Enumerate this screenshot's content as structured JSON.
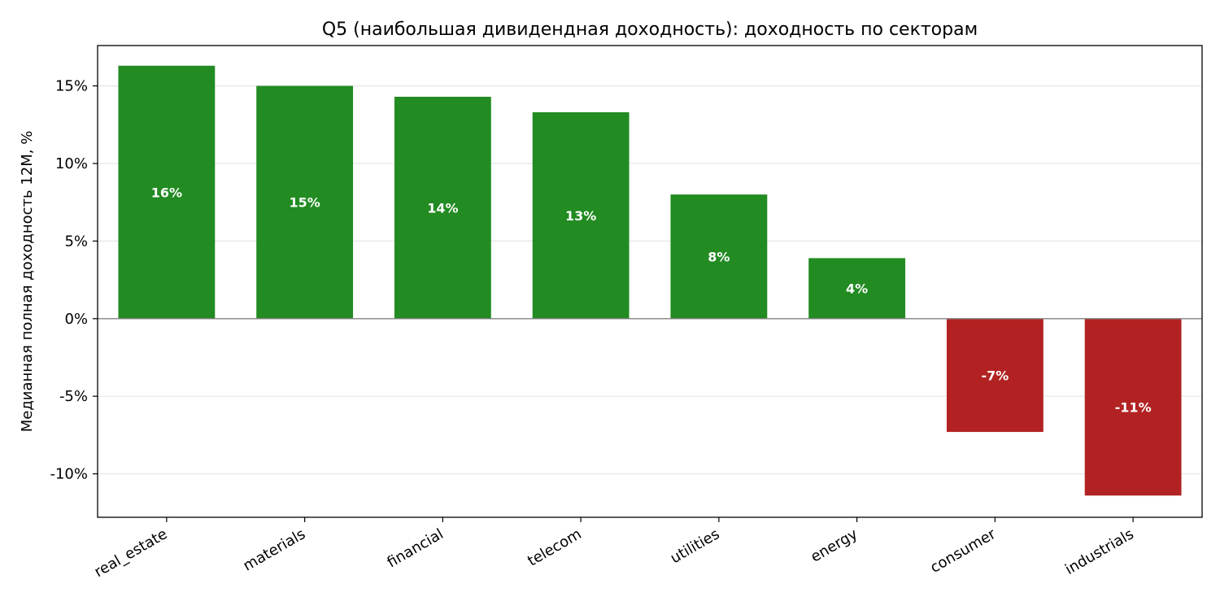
{
  "chart_data": {
    "type": "bar",
    "title": "Q5 (наибольшая дивидендная доходность): доходность по секторам",
    "xlabel": "",
    "ylabel": "Медианная полная доходность 12М, %",
    "categories": [
      "real_estate",
      "materials",
      "financial",
      "telecom",
      "utilities",
      "energy",
      "consumer",
      "industrials"
    ],
    "values": [
      16.3,
      15.0,
      14.3,
      13.3,
      8.0,
      3.9,
      -7.3,
      -11.4
    ],
    "value_labels": [
      "16%",
      "15%",
      "14%",
      "13%",
      "8%",
      "4%",
      "-7%",
      "-11%"
    ],
    "ylim": [
      -12.8,
      17.6
    ],
    "yticks": [
      15,
      10,
      5,
      0,
      -5,
      -10
    ],
    "ytick_labels": [
      "15%",
      "10%",
      "5%",
      "0%",
      "-5%",
      "-10%"
    ],
    "grid": "y",
    "legend": "none",
    "colors": {
      "positive": "#228B22",
      "negative": "#B22222",
      "zero_line": "#808080",
      "grid": "#E6E6E6",
      "axis": "#000000"
    }
  }
}
